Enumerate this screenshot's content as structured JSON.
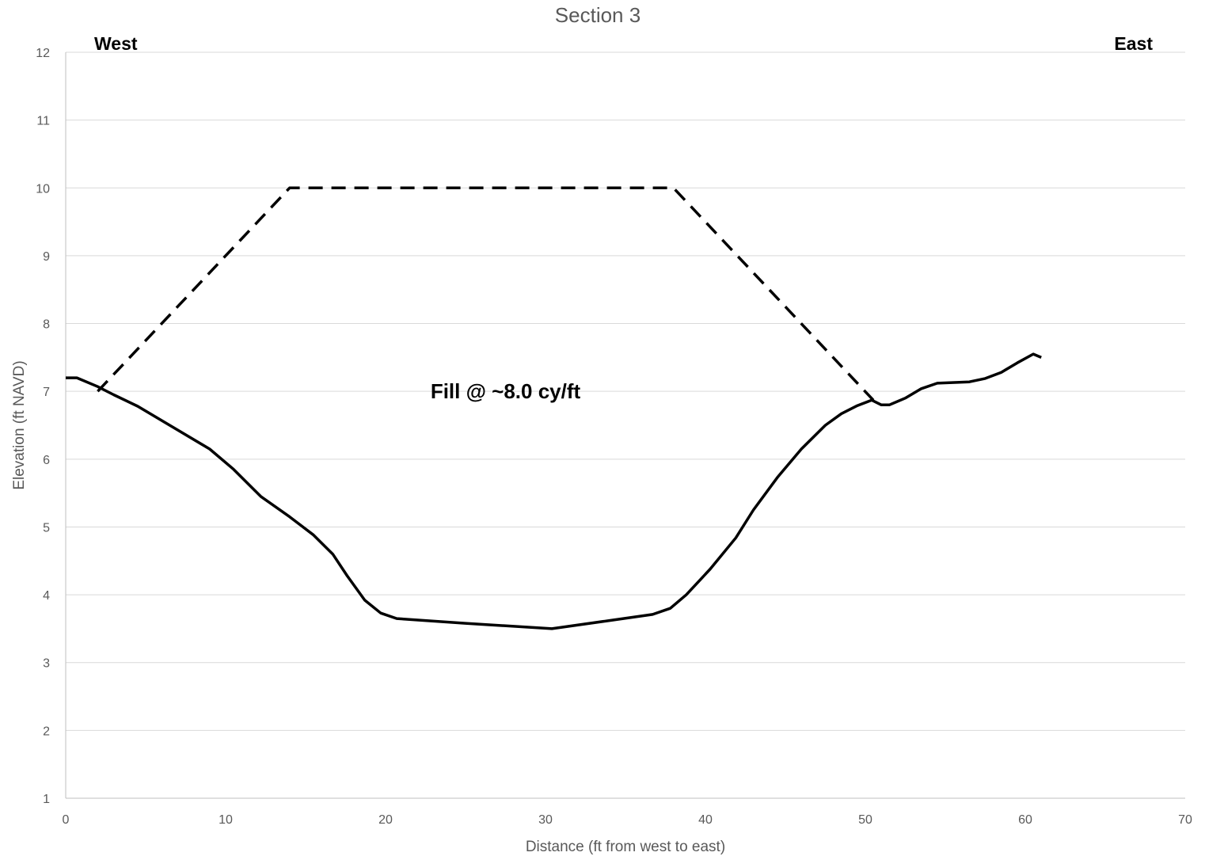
{
  "chart_data": {
    "type": "line",
    "title": "Section 3",
    "xlabel": "Distance (ft from west to east)",
    "ylabel": "Elevation (ft NAVD)",
    "xlim": [
      0,
      70
    ],
    "ylim": [
      1,
      12
    ],
    "x_ticks": [
      0,
      10,
      20,
      30,
      40,
      50,
      60,
      70
    ],
    "y_ticks": [
      1,
      2,
      3,
      4,
      5,
      6,
      7,
      8,
      9,
      10,
      11,
      12
    ],
    "grid": "horizontal",
    "legend": "none",
    "corner_labels": {
      "left": "West",
      "right": "East"
    },
    "annotation": {
      "text": "Fill @ ~8.0 cy/ft",
      "x": 27.5,
      "y": 7.0
    },
    "series": [
      {
        "style": "solid",
        "color": "#000000",
        "points": [
          [
            0,
            7.2
          ],
          [
            0.7,
            7.2
          ],
          [
            2,
            7.07
          ],
          [
            3,
            6.95
          ],
          [
            4.5,
            6.78
          ],
          [
            7,
            6.43
          ],
          [
            9,
            6.15
          ],
          [
            10.5,
            5.85
          ],
          [
            12.2,
            5.45
          ],
          [
            14,
            5.15
          ],
          [
            15.5,
            4.88
          ],
          [
            16.7,
            4.6
          ],
          [
            17.6,
            4.28
          ],
          [
            18.7,
            3.92
          ],
          [
            19.7,
            3.73
          ],
          [
            20.7,
            3.65
          ],
          [
            25,
            3.58
          ],
          [
            30.4,
            3.5
          ],
          [
            34,
            3.62
          ],
          [
            36.7,
            3.71
          ],
          [
            37.8,
            3.8
          ],
          [
            38.8,
            4.0
          ],
          [
            40.3,
            4.38
          ],
          [
            41.9,
            4.84
          ],
          [
            43,
            5.25
          ],
          [
            44.5,
            5.73
          ],
          [
            46,
            6.15
          ],
          [
            47.5,
            6.5
          ],
          [
            48.5,
            6.67
          ],
          [
            49.5,
            6.79
          ],
          [
            50.4,
            6.87
          ],
          [
            51,
            6.8
          ],
          [
            51.5,
            6.8
          ],
          [
            52.5,
            6.9
          ],
          [
            53.5,
            7.04
          ],
          [
            54.5,
            7.12
          ],
          [
            56.5,
            7.14
          ],
          [
            57.5,
            7.19
          ],
          [
            58.5,
            7.28
          ],
          [
            59.5,
            7.42
          ],
          [
            60.5,
            7.55
          ],
          [
            61,
            7.5
          ]
        ]
      },
      {
        "style": "dashed",
        "color": "#000000",
        "points": [
          [
            2,
            7.0
          ],
          [
            14,
            10.0
          ],
          [
            38,
            10.0
          ],
          [
            50.5,
            6.87
          ]
        ]
      }
    ]
  }
}
